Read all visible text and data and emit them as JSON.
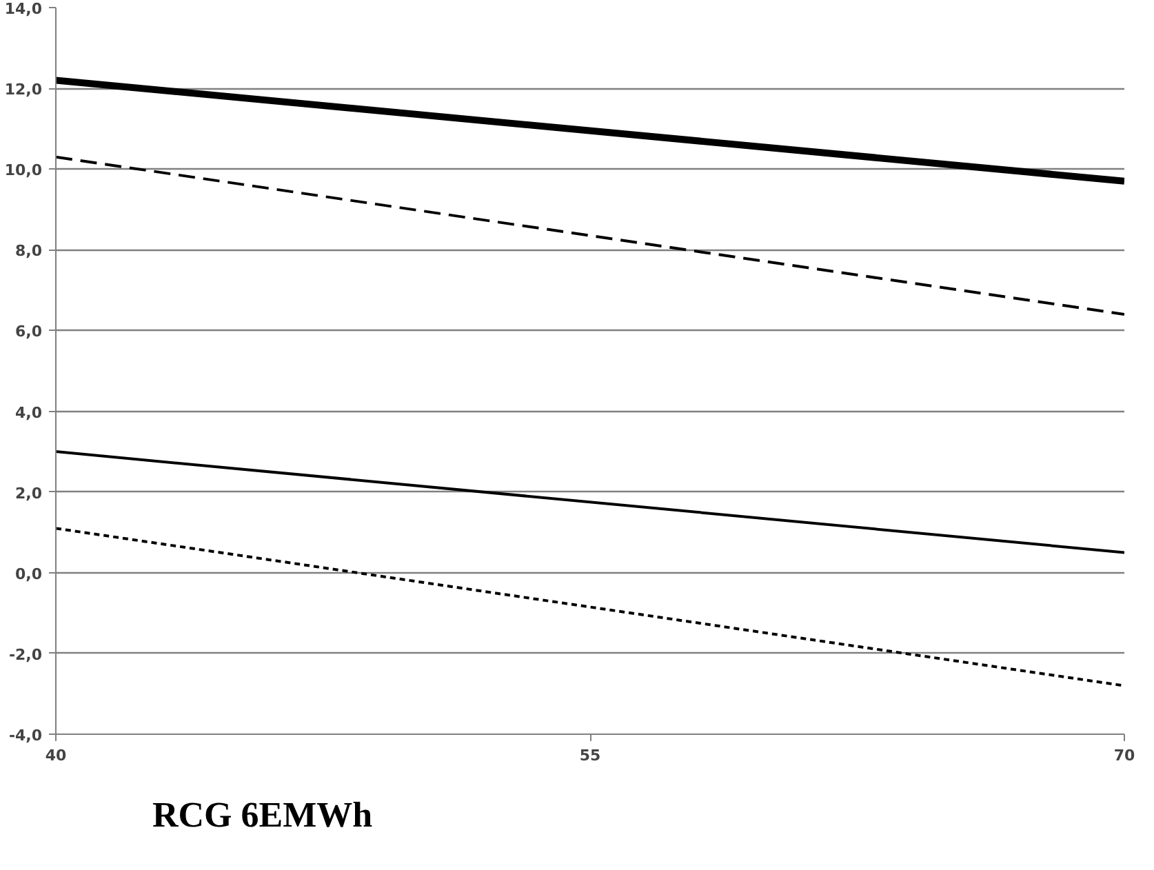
{
  "chart_data": {
    "type": "line",
    "x": [
      40,
      70
    ],
    "series": [
      {
        "color": "#000000",
        "values": [
          12.2,
          9.7
        ],
        "line_style": "solid"
      },
      {
        "color": "#000000",
        "values": [
          10.3,
          6.4
        ],
        "line_style": "dashed"
      },
      {
        "color": "#000000",
        "values": [
          3.0,
          0.5
        ],
        "line_style": "solid"
      },
      {
        "color": "#000000",
        "values": [
          1.1,
          -2.8
        ],
        "line_style": "dotted"
      }
    ],
    "xlim": [
      40,
      70
    ],
    "xticks": [
      40,
      55,
      70
    ],
    "ylim": [
      -4,
      14
    ],
    "yticks": [
      {
        "value": -4,
        "label": "-4,0"
      },
      {
        "value": -2,
        "label": "-2,0"
      },
      {
        "value": 0,
        "label": "0,0"
      },
      {
        "value": 2,
        "label": "2,0"
      },
      {
        "value": 4,
        "label": "4,0"
      },
      {
        "value": 6,
        "label": "6,0"
      },
      {
        "value": 8,
        "label": "8,0"
      },
      {
        "value": 10,
        "label": "10,0"
      },
      {
        "value": 12,
        "label": "12,0"
      },
      {
        "value": 14,
        "label": "14,0"
      }
    ],
    "grid": "y",
    "marker": "none",
    "annotations": [
      "RCG 6EMWh"
    ]
  }
}
